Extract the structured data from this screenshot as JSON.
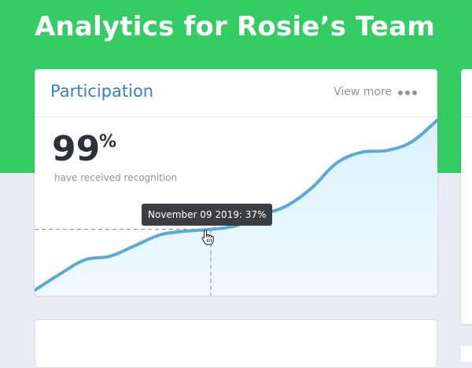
{
  "header": {
    "title": "Analytics for Rosie’s Team"
  },
  "participation_card": {
    "title": "Participation",
    "view_more_label": "View more",
    "menu_icon": "more-dots-icon",
    "stat_value": "99",
    "stat_unit": "%",
    "stat_caption": "have received recognition",
    "tooltip": "November 09 2019: 37%",
    "hover_cursor_icon": "hand-pointer-icon",
    "colors": {
      "line": "#5aa9d6",
      "fill_top": "#d9f1fb",
      "fill_bottom": "#f1f9fe",
      "title": "#3d7fbd",
      "header_band": "#35cc65"
    },
    "chart_data": {
      "type": "area",
      "xlabel": "",
      "ylabel": "",
      "grid": false,
      "legend": "none",
      "ylim": [
        0,
        100
      ],
      "x": [
        0,
        1,
        2,
        3,
        4,
        5,
        6,
        7,
        8,
        9,
        10,
        11,
        12,
        13,
        14,
        15,
        16
      ],
      "values": [
        3,
        12,
        20,
        22,
        28,
        34,
        36,
        37,
        39,
        45,
        50,
        60,
        74,
        80,
        81,
        86,
        98
      ],
      "highlight": {
        "index": 7,
        "label": "November 09 2019: 37%"
      }
    }
  }
}
